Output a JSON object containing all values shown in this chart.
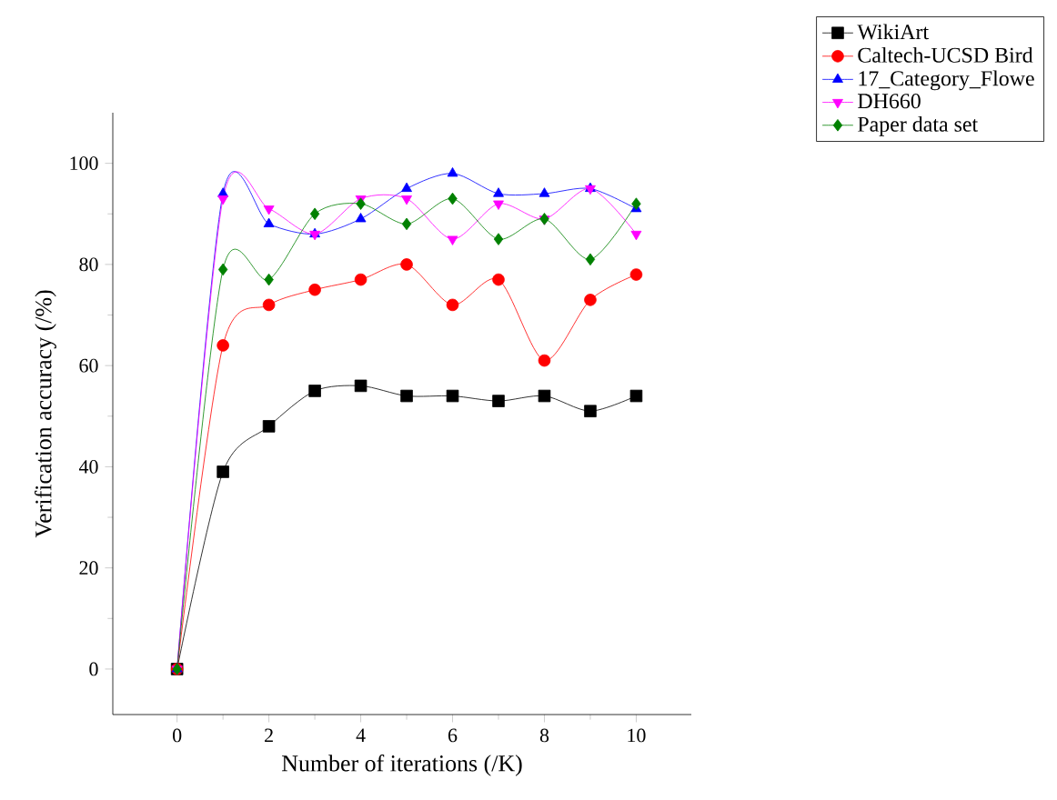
{
  "chart_data": {
    "type": "line",
    "xlabel": "Number of iterations (/K)",
    "ylabel": "Verification accuracy (/%)",
    "x": [
      0,
      1,
      2,
      3,
      4,
      5,
      6,
      7,
      8,
      9,
      10
    ],
    "xlim": [
      -1.4,
      11.2
    ],
    "ylim": [
      -9,
      110
    ],
    "xticks": [
      0,
      2,
      4,
      6,
      8,
      10
    ],
    "yticks": [
      0,
      20,
      40,
      60,
      80,
      100
    ],
    "legend": "top right",
    "grid": false,
    "line_style": "solid",
    "series": [
      {
        "name": "WikiArt",
        "color": "#000000",
        "marker": "square",
        "values": [
          0,
          39,
          48,
          55,
          56,
          54,
          54,
          53,
          54,
          51,
          54
        ]
      },
      {
        "name": "Caltech-UCSD Bird",
        "color": "#ff0000",
        "marker": "circle",
        "values": [
          0,
          64,
          72,
          75,
          77,
          80,
          72,
          77,
          61,
          73,
          78
        ]
      },
      {
        "name": "17_Category_Flowe",
        "color": "#0000ff",
        "marker": "triangle",
        "values": [
          0,
          94,
          88,
          86,
          89,
          95,
          98,
          94,
          94,
          95,
          91
        ]
      },
      {
        "name": "DH660",
        "color": "#ff00ff",
        "marker": "triangle-down",
        "values": [
          0,
          93,
          91,
          86,
          93,
          93,
          85,
          92,
          89,
          95,
          86
        ]
      },
      {
        "name": "Paper data set",
        "color": "#008000",
        "marker": "diamond",
        "values": [
          0,
          79,
          77,
          90,
          92,
          88,
          93,
          85,
          89,
          81,
          92
        ]
      }
    ]
  }
}
